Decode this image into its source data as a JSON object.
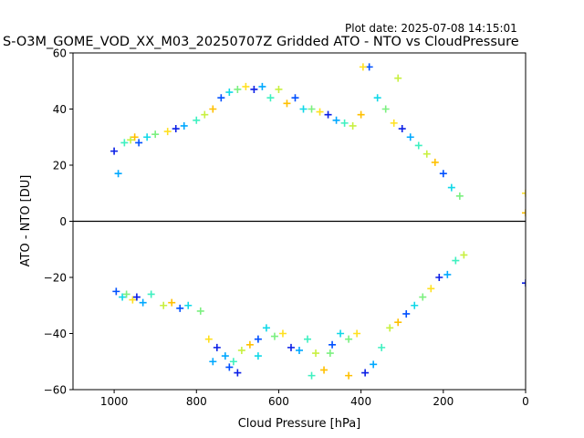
{
  "plot_date_label": "Plot date: 2025-07-08 14:15:01",
  "chart_data": {
    "type": "scatter",
    "title": "S-O3M_GOME_VOD_XX_M03_20250707Z Gridded ATO - NTO vs CloudPressure",
    "xlabel": "Cloud Pressure [hPa]",
    "ylabel": "ATO - NTO [DU]",
    "xlim": [
      1100,
      0
    ],
    "ylim": [
      -60,
      60
    ],
    "x_reversed": true,
    "xticks": [
      1000,
      800,
      600,
      400,
      200,
      0
    ],
    "yticks": [
      -60,
      -40,
      -20,
      0,
      20,
      40,
      60
    ],
    "marker": "+",
    "reference_line_y": 0,
    "grid": false,
    "legend": "none",
    "colors": [
      "#0a1ee6",
      "#0050ff",
      "#00a8ff",
      "#10d8e8",
      "#3ef0c0",
      "#7cf080",
      "#c8f040",
      "#ffe020",
      "#ffc000"
    ],
    "series": [
      {
        "x": [
          1000,
          995,
          990,
          980,
          975,
          970,
          960,
          955,
          950,
          945,
          940,
          930,
          920,
          910,
          900,
          880,
          870,
          860,
          850,
          840,
          830,
          820,
          800,
          790,
          780,
          770,
          760,
          750,
          740,
          730,
          720,
          710,
          700,
          690,
          680,
          670,
          660,
          650,
          640,
          630,
          620,
          610,
          600,
          590,
          580,
          570,
          560,
          550,
          540,
          530,
          520,
          510,
          500,
          490,
          480,
          470,
          460,
          450,
          440,
          430,
          420,
          410,
          400,
          390,
          380,
          370,
          360,
          350,
          340,
          330,
          320,
          310,
          300,
          290,
          280,
          270,
          260,
          250,
          240,
          230,
          220,
          210,
          200,
          190,
          180,
          170,
          160,
          150,
          395,
          430,
          700,
          720,
          760,
          650,
          520,
          475,
          310,
          0,
          0,
          0
        ],
        "y": [
          25,
          -25,
          17,
          -27,
          28,
          -26,
          29,
          -28,
          30,
          -27,
          28,
          -29,
          30,
          -26,
          31,
          -30,
          32,
          -29,
          33,
          -31,
          34,
          -30,
          36,
          -32,
          38,
          -42,
          40,
          -45,
          44,
          -48,
          46,
          -50,
          47,
          -46,
          48,
          -44,
          47,
          -42,
          48,
          -38,
          44,
          -41,
          47,
          -40,
          42,
          -45,
          44,
          -46,
          40,
          -42,
          40,
          -47,
          39,
          -53,
          38,
          -44,
          36,
          -40,
          35,
          -42,
          34,
          -40,
          38,
          -54,
          55,
          -51,
          44,
          -45,
          40,
          -38,
          35,
          -36,
          33,
          -33,
          30,
          -30,
          27,
          -27,
          24,
          -24,
          21,
          -20,
          17,
          -19,
          12,
          -14,
          9,
          -12,
          55,
          -55,
          -54,
          -52,
          -50,
          -48,
          -55,
          -47,
          51,
          10,
          3,
          -22
        ]
      }
    ]
  }
}
